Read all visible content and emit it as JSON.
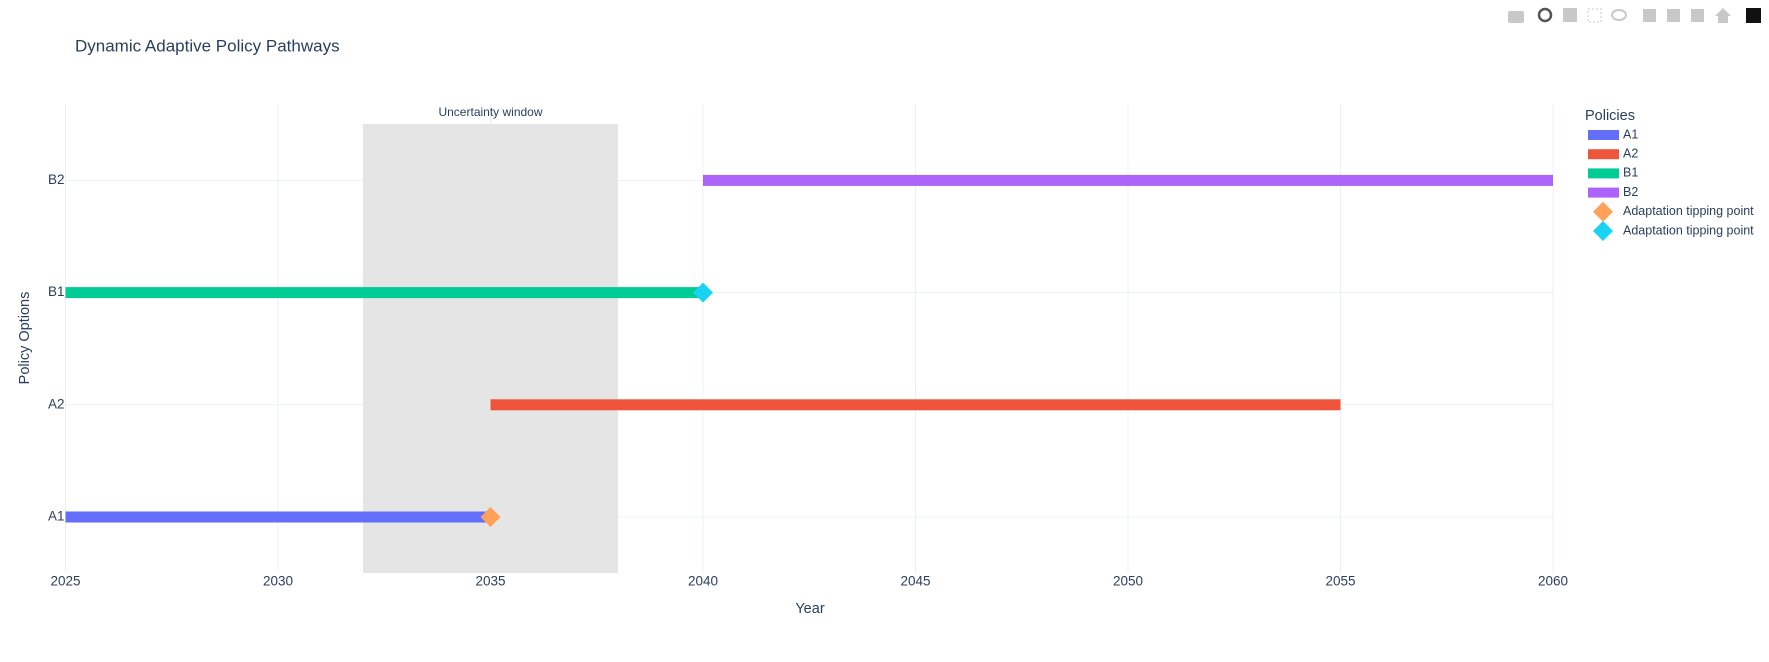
{
  "chart_data": {
    "type": "gantt",
    "title": "Dynamic Adaptive Policy Pathways",
    "xlabel": "Year",
    "ylabel": "Policy Options",
    "legend_title": "Policies",
    "categories": [
      "A1",
      "A2",
      "B1",
      "B2"
    ],
    "xlim": [
      2025,
      2060
    ],
    "xticks": [
      2025,
      2030,
      2035,
      2040,
      2045,
      2050,
      2055,
      2060
    ],
    "grid": true,
    "shaded_region": {
      "x": [
        2032,
        2038
      ],
      "label": "Uncertainty window",
      "color": "#e5e5e5"
    },
    "series": [
      {
        "name": "A1",
        "color": "#636efa",
        "x": [
          2025,
          2035
        ]
      },
      {
        "name": "A2",
        "color": "#ef553b",
        "x": [
          2035,
          2055
        ]
      },
      {
        "name": "B1",
        "color": "#00cc96",
        "x": [
          2025,
          2040
        ]
      },
      {
        "name": "B2",
        "color": "#ab63fa",
        "x": [
          2040,
          2060
        ]
      }
    ],
    "markers": [
      {
        "name": "Adaptation tipping point",
        "color": "#ffa15a",
        "y": "A1",
        "x": 2035
      },
      {
        "name": "Adaptation tipping point",
        "color": "#19d3f3",
        "y": "B1",
        "x": 2040
      }
    ]
  }
}
